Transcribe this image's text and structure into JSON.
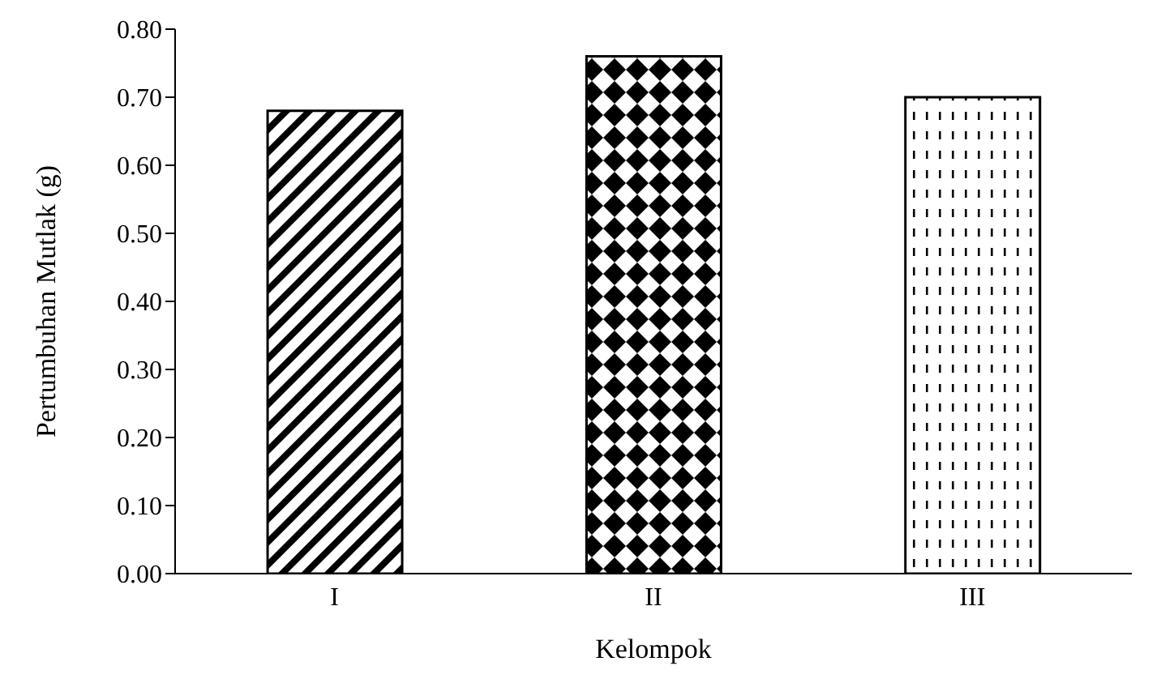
{
  "chart_data": {
    "type": "bar",
    "xlabel": "Kelompok",
    "ylabel": "Pertumbuhan Mutlak (g)",
    "categories": [
      "I",
      "II",
      "III"
    ],
    "values": [
      0.68,
      0.76,
      0.7
    ],
    "colors": [
      "#000000",
      "#000000",
      "#000000"
    ],
    "ylim": [
      0,
      0.8
    ],
    "yticks": [
      {
        "value": 0,
        "label": "0.00"
      },
      {
        "value": 0.1,
        "label": "0.10"
      },
      {
        "value": 0.2,
        "label": "0.20"
      },
      {
        "value": 0.3,
        "label": "0.30"
      },
      {
        "value": 0.4,
        "label": "0.40"
      },
      {
        "value": 0.5,
        "label": "0.50"
      },
      {
        "value": 0.6,
        "label": "0.60"
      },
      {
        "value": 0.7,
        "label": "0.70"
      },
      {
        "value": 0.8,
        "label": "0.80"
      }
    ],
    "grid": false,
    "legend": false
  }
}
